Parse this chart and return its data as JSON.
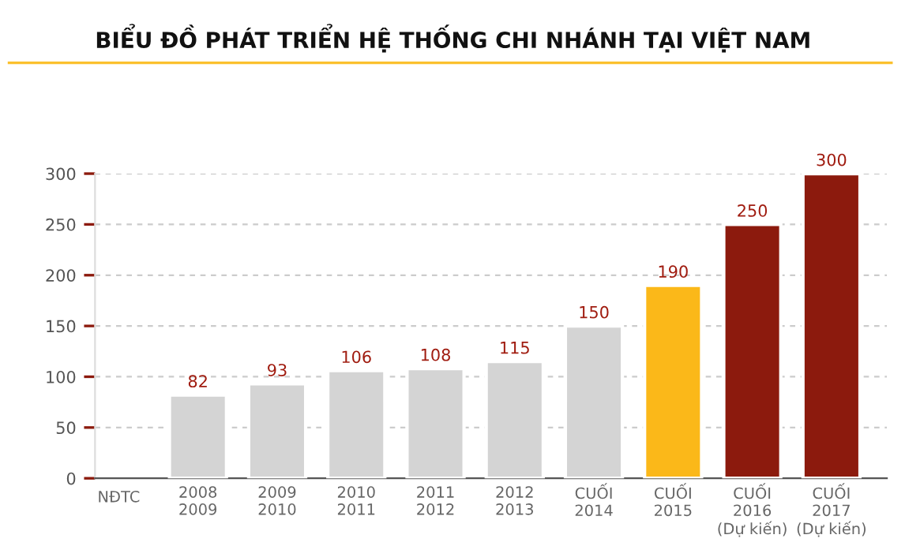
{
  "chart_data": {
    "type": "bar",
    "title": "BIỂU ĐỒ PHÁT TRIỂN HỆ THỐNG CHI NHÁNH TẠI VIỆT NAM",
    "categories": [
      "2008\n2009",
      "2009\n2010",
      "2010\n2011",
      "2011\n2012",
      "2012\n2013",
      "CUỐI\n2014",
      "CUỐI\n2015",
      "CUỐI\n2016\n(Dự kiến)",
      "CUỐI\n2017\n(Dự kiến)"
    ],
    "values": [
      82,
      93,
      106,
      108,
      115,
      150,
      190,
      250,
      300
    ],
    "colors": [
      "#d4d4d4",
      "#d4d4d4",
      "#d4d4d4",
      "#d4d4d4",
      "#d4d4d4",
      "#d4d4d4",
      "#fbb819",
      "#8c1a0d",
      "#8c1a0d"
    ],
    "ylim": [
      0,
      300
    ],
    "yticks": [
      0,
      50,
      100,
      150,
      200,
      250,
      300
    ],
    "grid": "y",
    "data_labels": true,
    "legend": false,
    "annotations": [
      "NĐTC"
    ]
  }
}
